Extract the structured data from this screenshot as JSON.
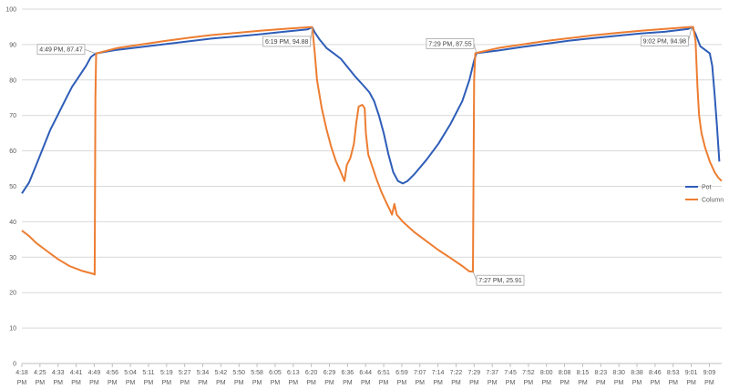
{
  "chart_data": {
    "type": "line",
    "title": "",
    "xlabel": "",
    "ylabel": "",
    "ylim": [
      0,
      100
    ],
    "y_ticks": [
      0,
      10,
      20,
      30,
      40,
      50,
      60,
      70,
      80,
      90,
      100
    ],
    "grid": "horizontal",
    "legend_position": "right",
    "x_range_minutes": [
      0,
      294
    ],
    "x_ticks": [
      {
        "label": "4:18 PM",
        "t": 0
      },
      {
        "label": "4:25 PM",
        "t": 7.6
      },
      {
        "label": "4:33 PM",
        "t": 15.2
      },
      {
        "label": "4:41 PM",
        "t": 22.8
      },
      {
        "label": "4:49 PM",
        "t": 30.4
      },
      {
        "label": "4:56 PM",
        "t": 38
      },
      {
        "label": "5:04 PM",
        "t": 45.6
      },
      {
        "label": "5:11 PM",
        "t": 53.2
      },
      {
        "label": "5:19 PM",
        "t": 60.8
      },
      {
        "label": "5:27 PM",
        "t": 68.4
      },
      {
        "label": "5:34 PM",
        "t": 76
      },
      {
        "label": "5:42 PM",
        "t": 83.6
      },
      {
        "label": "5:50 PM",
        "t": 91.2
      },
      {
        "label": "5:58 PM",
        "t": 98.8
      },
      {
        "label": "6:05 PM",
        "t": 106.4
      },
      {
        "label": "6:13 PM",
        "t": 114
      },
      {
        "label": "6:20 PM",
        "t": 121.6
      },
      {
        "label": "6:29 PM",
        "t": 129.2
      },
      {
        "label": "6:36 PM",
        "t": 136.8
      },
      {
        "label": "6:44 PM",
        "t": 144.4
      },
      {
        "label": "6:51 PM",
        "t": 152
      },
      {
        "label": "6:59 PM",
        "t": 159.6
      },
      {
        "label": "7:07 PM",
        "t": 167.2
      },
      {
        "label": "7:14 PM",
        "t": 174.8
      },
      {
        "label": "7:22 PM",
        "t": 182.4
      },
      {
        "label": "7:29 PM",
        "t": 190
      },
      {
        "label": "7:37 PM",
        "t": 197.6
      },
      {
        "label": "7:45 PM",
        "t": 205.2
      },
      {
        "label": "7:52 PM",
        "t": 212.8
      },
      {
        "label": "8:00 PM",
        "t": 220.4
      },
      {
        "label": "8:08 PM",
        "t": 228
      },
      {
        "label": "8:15 PM",
        "t": 235.6
      },
      {
        "label": "8:23 PM",
        "t": 243.2
      },
      {
        "label": "8:30 PM",
        "t": 250.8
      },
      {
        "label": "8:38 PM",
        "t": 258.4
      },
      {
        "label": "8:46 PM",
        "t": 266
      },
      {
        "label": "8:53 PM",
        "t": 273.6
      },
      {
        "label": "9:01 PM",
        "t": 281.2
      },
      {
        "label": "9:09 PM",
        "t": 288.8
      }
    ],
    "series": [
      {
        "name": "Pot",
        "color": "#2e5db8",
        "points": [
          [
            0,
            48
          ],
          [
            3,
            51
          ],
          [
            6,
            56
          ],
          [
            9,
            61
          ],
          [
            12,
            66
          ],
          [
            15,
            70
          ],
          [
            18,
            74
          ],
          [
            21,
            78
          ],
          [
            24,
            81
          ],
          [
            27,
            84
          ],
          [
            29,
            86.5
          ],
          [
            31,
            87.47
          ],
          [
            40,
            88.5
          ],
          [
            50,
            89.3
          ],
          [
            60,
            90.1
          ],
          [
            70,
            90.9
          ],
          [
            80,
            91.7
          ],
          [
            90,
            92.3
          ],
          [
            100,
            92.9
          ],
          [
            110,
            93.6
          ],
          [
            120,
            94.3
          ],
          [
            122,
            94.88
          ],
          [
            123,
            93.5
          ],
          [
            125,
            91.5
          ],
          [
            128,
            89
          ],
          [
            131,
            87.5
          ],
          [
            134,
            86
          ],
          [
            137,
            83.5
          ],
          [
            140,
            81
          ],
          [
            143,
            78.8
          ],
          [
            146,
            76.5
          ],
          [
            148,
            74
          ],
          [
            150,
            70
          ],
          [
            152,
            65
          ],
          [
            154,
            59
          ],
          [
            156,
            54
          ],
          [
            158,
            51.5
          ],
          [
            160,
            50.8
          ],
          [
            162,
            51.5
          ],
          [
            165,
            53.5
          ],
          [
            170,
            57.5
          ],
          [
            175,
            62
          ],
          [
            180,
            67.5
          ],
          [
            185,
            74
          ],
          [
            188,
            80
          ],
          [
            190,
            85.5
          ],
          [
            191,
            87.55
          ],
          [
            200,
            88.3
          ],
          [
            210,
            89.3
          ],
          [
            220,
            90.2
          ],
          [
            230,
            91.1
          ],
          [
            240,
            91.8
          ],
          [
            250,
            92.5
          ],
          [
            260,
            93.1
          ],
          [
            270,
            93.6
          ],
          [
            280,
            94.4
          ],
          [
            281.5,
            94.98
          ],
          [
            283,
            93
          ],
          [
            285,
            89.5
          ],
          [
            287,
            88.5
          ],
          [
            289,
            87.5
          ],
          [
            290,
            84
          ],
          [
            291,
            76
          ],
          [
            292,
            67
          ],
          [
            293,
            57
          ]
        ]
      },
      {
        "name": "Column",
        "color": "#ed7d31",
        "points": [
          [
            0,
            37.5
          ],
          [
            3,
            36
          ],
          [
            6,
            34
          ],
          [
            10,
            32
          ],
          [
            15,
            29.5
          ],
          [
            20,
            27.5
          ],
          [
            25,
            26.2
          ],
          [
            30,
            25.3
          ],
          [
            30.6,
            25.1
          ],
          [
            30.9,
            75
          ],
          [
            31.2,
            87.47
          ],
          [
            40,
            89
          ],
          [
            50,
            90
          ],
          [
            60,
            91
          ],
          [
            70,
            91.9
          ],
          [
            80,
            92.7
          ],
          [
            90,
            93.3
          ],
          [
            100,
            93.9
          ],
          [
            110,
            94.4
          ],
          [
            121,
            94.9
          ],
          [
            122,
            94.9
          ],
          [
            123,
            88
          ],
          [
            124,
            80
          ],
          [
            126,
            72
          ],
          [
            128,
            66
          ],
          [
            130,
            61
          ],
          [
            132,
            57
          ],
          [
            134,
            54
          ],
          [
            135.5,
            51.5
          ],
          [
            136.5,
            56
          ],
          [
            138,
            58
          ],
          [
            139.5,
            62
          ],
          [
            140.5,
            68
          ],
          [
            141.5,
            72.5
          ],
          [
            143,
            73
          ],
          [
            144,
            72
          ],
          [
            144.5,
            65
          ],
          [
            145.5,
            59
          ],
          [
            147,
            56
          ],
          [
            149,
            52
          ],
          [
            151,
            48.5
          ],
          [
            153,
            45.5
          ],
          [
            154.5,
            43.5
          ],
          [
            155.5,
            42
          ],
          [
            156.5,
            45
          ],
          [
            157.5,
            42
          ],
          [
            160,
            40
          ],
          [
            165,
            37
          ],
          [
            170,
            34.5
          ],
          [
            175,
            32
          ],
          [
            180,
            29.8
          ],
          [
            185,
            27.5
          ],
          [
            188,
            26
          ],
          [
            189.5,
            25.91
          ],
          [
            190,
            80
          ],
          [
            190.5,
            87.55
          ],
          [
            200,
            89
          ],
          [
            210,
            90
          ],
          [
            220,
            91
          ],
          [
            230,
            91.8
          ],
          [
            240,
            92.6
          ],
          [
            250,
            93.3
          ],
          [
            260,
            93.9
          ],
          [
            270,
            94.4
          ],
          [
            280,
            94.9
          ],
          [
            282,
            95
          ],
          [
            283,
            91
          ],
          [
            283.8,
            78
          ],
          [
            284.5,
            70
          ],
          [
            285.5,
            65
          ],
          [
            287,
            61
          ],
          [
            289,
            57
          ],
          [
            291,
            54
          ],
          [
            292.5,
            52.5
          ],
          [
            294,
            51.5
          ]
        ]
      }
    ],
    "annotations": [
      {
        "text": "4:49 PM, 87.47",
        "t": 31,
        "y": 87.47
      },
      {
        "text": "6:19 PM, 94.88",
        "t": 122,
        "y": 94.88
      },
      {
        "text": "7:29 PM, 87.55",
        "t": 191,
        "y": 87.55
      },
      {
        "text": "9:02 PM, 94.98",
        "t": 281.5,
        "y": 94.98
      },
      {
        "text": "7:27 PM, 25.91",
        "t": 189.5,
        "y": 25.91
      }
    ]
  }
}
